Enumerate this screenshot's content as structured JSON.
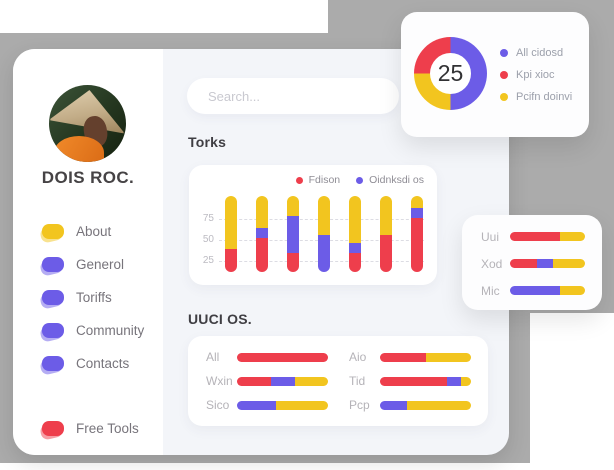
{
  "colors": {
    "red": "#EE3E4C",
    "purple": "#6C5CE7",
    "yellow": "#F2C51F",
    "gray_background": "#ABABAB"
  },
  "sidebar": {
    "profile_name": "DOIS ROC.",
    "items": [
      {
        "label": "About",
        "color": "yellow"
      },
      {
        "label": "Generol",
        "color": "purple"
      },
      {
        "label": "Toriffs",
        "color": "purple"
      },
      {
        "label": "Community",
        "color": "purple"
      },
      {
        "label": "Contacts",
        "color": "purple"
      }
    ],
    "footer_items": [
      {
        "label": "Free Tools",
        "color": "red"
      }
    ]
  },
  "search": {
    "placeholder": "Search..."
  },
  "sections": {
    "torks_title": "Torks",
    "uuci_title": "UUCI OS."
  },
  "chart_data": {
    "donut": {
      "type": "pie",
      "center_label": "25",
      "slices": [
        {
          "label": "All cidosd",
          "color": "purple",
          "value": 50
        },
        {
          "label": "Kpi xioc",
          "color": "red",
          "value": 25
        },
        {
          "label": "Pcifn doinvi",
          "color": "yellow",
          "value": 25
        }
      ],
      "draw_order": [
        0,
        2,
        1
      ],
      "legend_position": "right"
    },
    "torks": {
      "type": "bar",
      "stacked": true,
      "yticks": [
        75,
        50,
        25
      ],
      "ymax": 102,
      "grid": "dashed",
      "track_color": "yellow",
      "series": [
        {
          "name": "Fdison",
          "color": "red",
          "values": [
            31,
            45,
            25,
            0,
            25,
            50,
            72
          ]
        },
        {
          "name": "Oidnksdi os",
          "color": "purple",
          "values": [
            0,
            14,
            50,
            50,
            13,
            0,
            14
          ]
        }
      ]
    },
    "uuci": {
      "type": "hbar",
      "rows": [
        {
          "label": "All",
          "segments": [
            [
              "red",
              100
            ]
          ]
        },
        {
          "label": "Wxin",
          "segments": [
            [
              "red",
              37
            ],
            [
              "purple",
              27
            ],
            [
              "yellow",
              36
            ]
          ]
        },
        {
          "label": "Sico",
          "segments": [
            [
              "purple",
              43
            ],
            [
              "yellow",
              57
            ]
          ]
        },
        {
          "label": "Aio",
          "segments": [
            [
              "red",
              50
            ],
            [
              "yellow",
              50
            ]
          ]
        },
        {
          "label": "Tid",
          "segments": [
            [
              "red",
              74
            ],
            [
              "purple",
              15
            ],
            [
              "yellow",
              11
            ]
          ]
        },
        {
          "label": "Pcp",
          "segments": [
            [
              "purple",
              30
            ],
            [
              "yellow",
              70
            ]
          ]
        }
      ]
    },
    "side": {
      "type": "hbar",
      "rows": [
        {
          "label": "Uui",
          "segments": [
            [
              "red",
              66
            ],
            [
              "yellow",
              34
            ]
          ]
        },
        {
          "label": "Xod",
          "segments": [
            [
              "red",
              36
            ],
            [
              "purple",
              21
            ],
            [
              "yellow",
              43
            ]
          ]
        },
        {
          "label": "Mic",
          "segments": [
            [
              "purple",
              66
            ],
            [
              "yellow",
              34
            ]
          ]
        }
      ]
    }
  }
}
